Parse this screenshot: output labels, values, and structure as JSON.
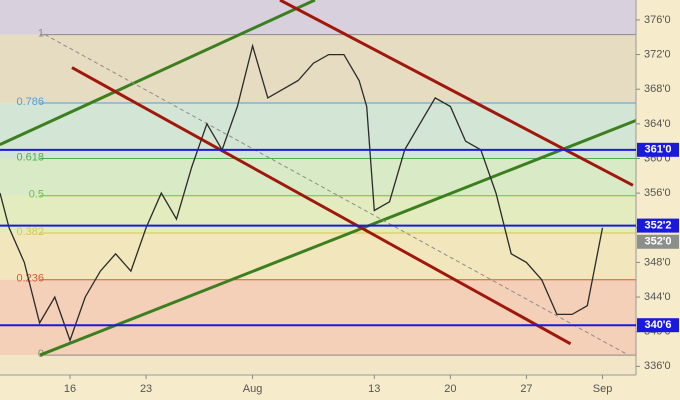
{
  "chart_data": {
    "type": "line",
    "x": [
      -4.6,
      -4,
      -3,
      -2,
      -1,
      0,
      1,
      2,
      3,
      4,
      5,
      6,
      7,
      8,
      9,
      10,
      11,
      12,
      13,
      14,
      15,
      16,
      17,
      18,
      19,
      19.5,
      20,
      21,
      22,
      23,
      24,
      25,
      26,
      27,
      28,
      29,
      30,
      31,
      32,
      33,
      34,
      35
    ],
    "values": [
      356,
      352,
      348,
      341,
      344,
      339,
      344,
      347,
      349,
      347,
      352,
      356,
      353,
      359,
      364,
      361,
      366,
      373,
      367,
      368,
      369,
      371,
      372,
      372,
      369,
      366,
      354,
      355,
      361,
      364,
      367,
      366,
      362,
      361,
      356,
      349,
      348,
      346,
      342,
      342,
      343,
      352
    ],
    "color": "#2a2a2a",
    "xlim": [
      -4.6,
      37.2
    ],
    "xticks": [
      {
        "value": 0,
        "label": "16"
      },
      {
        "value": 5,
        "label": "23"
      },
      {
        "value": 12,
        "label": "Aug"
      },
      {
        "value": 20,
        "label": "13"
      },
      {
        "value": 25,
        "label": "20"
      },
      {
        "value": 30,
        "label": "27"
      },
      {
        "value": 35,
        "label": "Sep"
      }
    ],
    "ylim": [
      335,
      378.3
    ],
    "yticks": [
      {
        "value": 336,
        "label": "336'0"
      },
      {
        "value": 340,
        "label": "340'0"
      },
      {
        "value": 344,
        "label": "344'0"
      },
      {
        "value": 348,
        "label": "348'0"
      },
      {
        "value": 352,
        "label": "352'0"
      },
      {
        "value": 356,
        "label": "356'0"
      },
      {
        "value": 360,
        "label": "360'0"
      },
      {
        "value": 364,
        "label": "364'0"
      },
      {
        "value": 368,
        "label": "368'0"
      },
      {
        "value": 372,
        "label": "372'0"
      },
      {
        "value": 376,
        "label": "376'0"
      }
    ],
    "fib_levels": [
      {
        "ratio": 1,
        "value": 374.3,
        "color": "#8a8a8a",
        "fill": "#e6dcc2"
      },
      {
        "ratio": 0.786,
        "value": 366.4,
        "color": "#4f9fd6",
        "fill": "#d3e5d4"
      },
      {
        "ratio": 0.618,
        "value": 360.0,
        "color": "#4fb04f",
        "fill": "#d9ebc6"
      },
      {
        "ratio": 0.5,
        "value": 355.7,
        "color": "#6cc04a",
        "fill": "#e3ecbf"
      },
      {
        "ratio": 0.382,
        "value": 351.4,
        "color": "#d8c64a",
        "fill": "#f2e6bd"
      },
      {
        "ratio": 0.236,
        "value": 346.0,
        "color": "#d8553a",
        "fill": "#f4d0b8"
      },
      {
        "ratio": 0,
        "value": 337.3,
        "color": "#8a8a8a",
        "fill": "#f3e6c6"
      }
    ],
    "top_fill": "#d9d0dd",
    "levels": [
      {
        "value": 361,
        "label": "361'0"
      },
      {
        "value": 352.25,
        "label": "352'2"
      },
      {
        "value": 340.75,
        "label": "340'6"
      }
    ],
    "level_color": "#1a1adf",
    "last": {
      "value": 352,
      "label": "352'0"
    },
    "last_color": "#8a8f8a",
    "trendlines": [
      {
        "color": "#3b7f1e",
        "x": [
          -4.61,
          16.1
        ],
        "y": [
          361.6,
          378.3
        ],
        "dashed": false
      },
      {
        "color": "#3b7f1e",
        "x": [
          -1.97,
          37.5
        ],
        "y": [
          337.3,
          364.6
        ],
        "dashed": false
      },
      {
        "color": "#a0180c",
        "x": [
          0.13,
          32.9
        ],
        "y": [
          370.5,
          338.6
        ],
        "dashed": false
      },
      {
        "color": "#a0180c",
        "x": [
          13.8,
          37.0
        ],
        "y": [
          378.3,
          356.9
        ],
        "dashed": false
      },
      {
        "color": "#8c8c8c",
        "x": [
          -1.64,
          36.7
        ],
        "y": [
          374.3,
          337.3
        ],
        "dashed": true
      }
    ]
  }
}
